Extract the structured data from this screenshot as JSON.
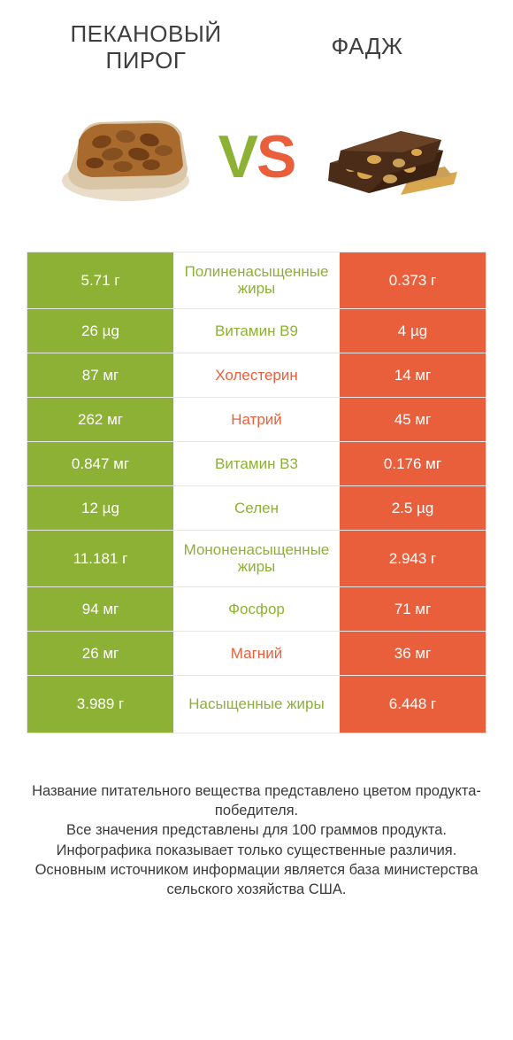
{
  "colors": {
    "green": "#8db135",
    "orange": "#e95f3c",
    "text": "#3e3e3e",
    "border": "#e6e6e6",
    "white": "#ffffff"
  },
  "fonts": {
    "title_size": 26,
    "vs_size": 68,
    "cell_size": 17,
    "footer_size": 16.5
  },
  "titles": {
    "left_line1": "ПЕКАНОВЫЙ",
    "left_line2": "ПИРОГ",
    "right": "ФАДЖ"
  },
  "vs": {
    "v": "V",
    "s": "S"
  },
  "rows": [
    {
      "left": "5.71 г",
      "label": "Полиненасыщенные жиры",
      "right": "0.373 г",
      "winner": "left",
      "tall": true
    },
    {
      "left": "26 µg",
      "label": "Витамин B9",
      "right": "4 µg",
      "winner": "left",
      "tall": false
    },
    {
      "left": "87 мг",
      "label": "Холестерин",
      "right": "14 мг",
      "winner": "right",
      "tall": false
    },
    {
      "left": "262 мг",
      "label": "Натрий",
      "right": "45 мг",
      "winner": "right",
      "tall": false
    },
    {
      "left": "0.847 мг",
      "label": "Витамин B3",
      "right": "0.176 мг",
      "winner": "left",
      "tall": false
    },
    {
      "left": "12 µg",
      "label": "Селен",
      "right": "2.5 µg",
      "winner": "left",
      "tall": false
    },
    {
      "left": "11.181 г",
      "label": "Мононенасыщенные жиры",
      "right": "2.943 г",
      "winner": "left",
      "tall": true
    },
    {
      "left": "94 мг",
      "label": "Фосфор",
      "right": "71 мг",
      "winner": "left",
      "tall": false
    },
    {
      "left": "26 мг",
      "label": "Магний",
      "right": "36 мг",
      "winner": "right",
      "tall": false
    },
    {
      "left": "3.989 г",
      "label": "Насыщенные жиры",
      "right": "6.448 г",
      "winner": "left",
      "tall": true
    }
  ],
  "footer": {
    "l1": "Название питательного вещества представлено цветом продукта-победителя.",
    "l2": "Все значения представлены для 100 граммов продукта.",
    "l3": "Инфографика показывает только существенные различия.",
    "l4": "Основным источником информации является база министерства сельского хозяйства США."
  }
}
